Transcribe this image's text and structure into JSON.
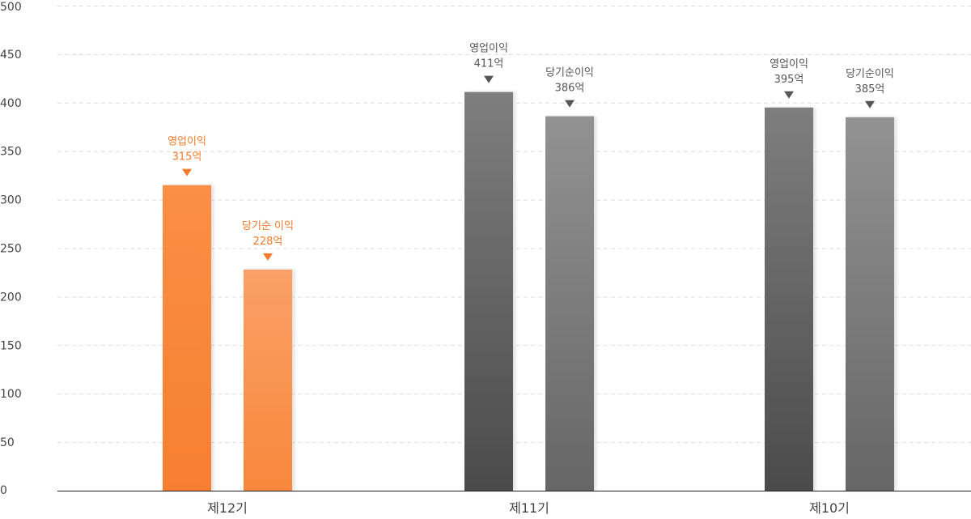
{
  "chart_data": {
    "type": "bar",
    "title": "",
    "xlabel": "",
    "ylabel": "",
    "ylim": [
      0,
      500
    ],
    "yticks": [
      0,
      50,
      100,
      150,
      200,
      250,
      300,
      350,
      400,
      450,
      500
    ],
    "grid": true,
    "categories": [
      "제12기",
      "제11기",
      "제10기"
    ],
    "series": [
      {
        "name": "영업이익",
        "values": [
          315,
          411,
          395
        ]
      },
      {
        "name": "당기순이익",
        "values": [
          228,
          386,
          385
        ]
      }
    ],
    "data_labels": [
      [
        {
          "name": "영업이익",
          "value": "315억"
        },
        {
          "name": "당기순 이익",
          "value": "228억"
        }
      ],
      [
        {
          "name": "영업이익",
          "value": "411억"
        },
        {
          "name": "당기순이익",
          "value": "386억"
        }
      ],
      [
        {
          "name": "영업이익",
          "value": "395억"
        },
        {
          "name": "당기순이익",
          "value": "385억"
        }
      ]
    ],
    "colors": {
      "highlight": [
        "#f7812f",
        "#f99a5a"
      ],
      "highlight_text": "#f47a2a",
      "normal": [
        "#4f4f4f",
        "#6a6a6a"
      ],
      "normal_top": [
        "#7d7d7d",
        "#909090"
      ],
      "normal_text": "#555555"
    }
  }
}
